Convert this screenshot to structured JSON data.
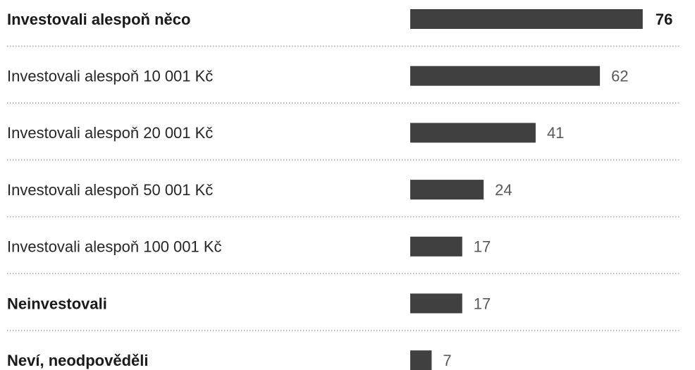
{
  "chart_data": {
    "type": "bar",
    "categories": [
      "Investovali alespoň něco",
      "Investovali alespoň 10 001 Kč",
      "Investovali alespoň 20 001 Kč",
      "Investovali alespoň 50 001 Kč",
      "Investovali alespoň 100 001 Kč",
      "Neinvestovali",
      "Neví, neodpověděli"
    ],
    "values": [
      76,
      62,
      41,
      24,
      17,
      17,
      7
    ],
    "color": "#404040"
  }
}
